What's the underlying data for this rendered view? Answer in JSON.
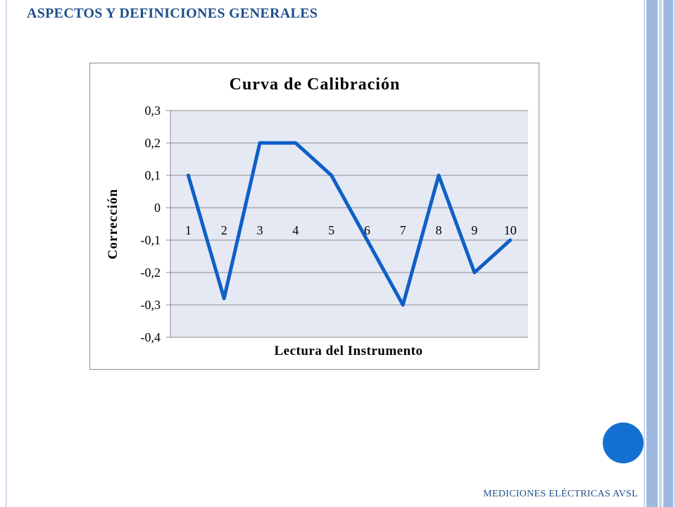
{
  "slide": {
    "title": "ASPECTOS Y DEFINICIONES GENERALES",
    "footer": "MEDICIONES ELÉCTRICAS AVSL"
  },
  "colors": {
    "title_text": "#1e4e8a",
    "plot_area": "#e5e9f4",
    "series_line": "#0f5fc8",
    "accent_circle": "#1470d0"
  },
  "chart_data": {
    "type": "line",
    "title": "Curva de Calibración",
    "xlabel": "Lectura del Instrumento",
    "ylabel": "Corrección",
    "categories": [
      "1",
      "2",
      "3",
      "4",
      "5",
      "6",
      "7",
      "8",
      "9",
      "10"
    ],
    "series": [
      {
        "values": [
          0.1,
          -0.28,
          0.2,
          0.2,
          0.1,
          -0.1,
          -0.3,
          0.1,
          -0.2,
          -0.1
        ]
      }
    ],
    "ylim": [
      -0.4,
      0.3
    ],
    "yticks": [
      "0,3",
      "0,2",
      "0,1",
      "0",
      "-0,1",
      "-0,2",
      "-0,3",
      "-0,4"
    ],
    "ytick_values": [
      0.3,
      0.2,
      0.1,
      0,
      -0.1,
      -0.2,
      -0.3,
      -0.4
    ],
    "grid": true,
    "legend": "none",
    "category_labels_at": "y=0 axis"
  }
}
